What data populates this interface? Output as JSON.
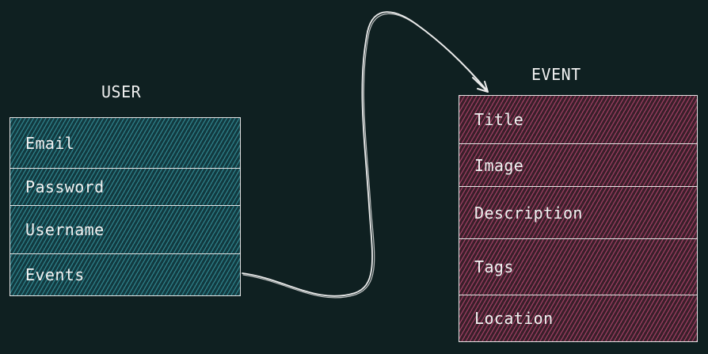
{
  "user": {
    "title": "USER",
    "fields": [
      "Email",
      "Password",
      "Username",
      "Events"
    ]
  },
  "event": {
    "title": "EVENT",
    "fields": [
      "Title",
      "Image",
      "Description",
      "Tags",
      "Location"
    ]
  },
  "colors": {
    "background": "#0f2021",
    "user_fill": "#2a8a94",
    "event_fill": "#a8446b",
    "stroke": "#e4e4e4"
  }
}
